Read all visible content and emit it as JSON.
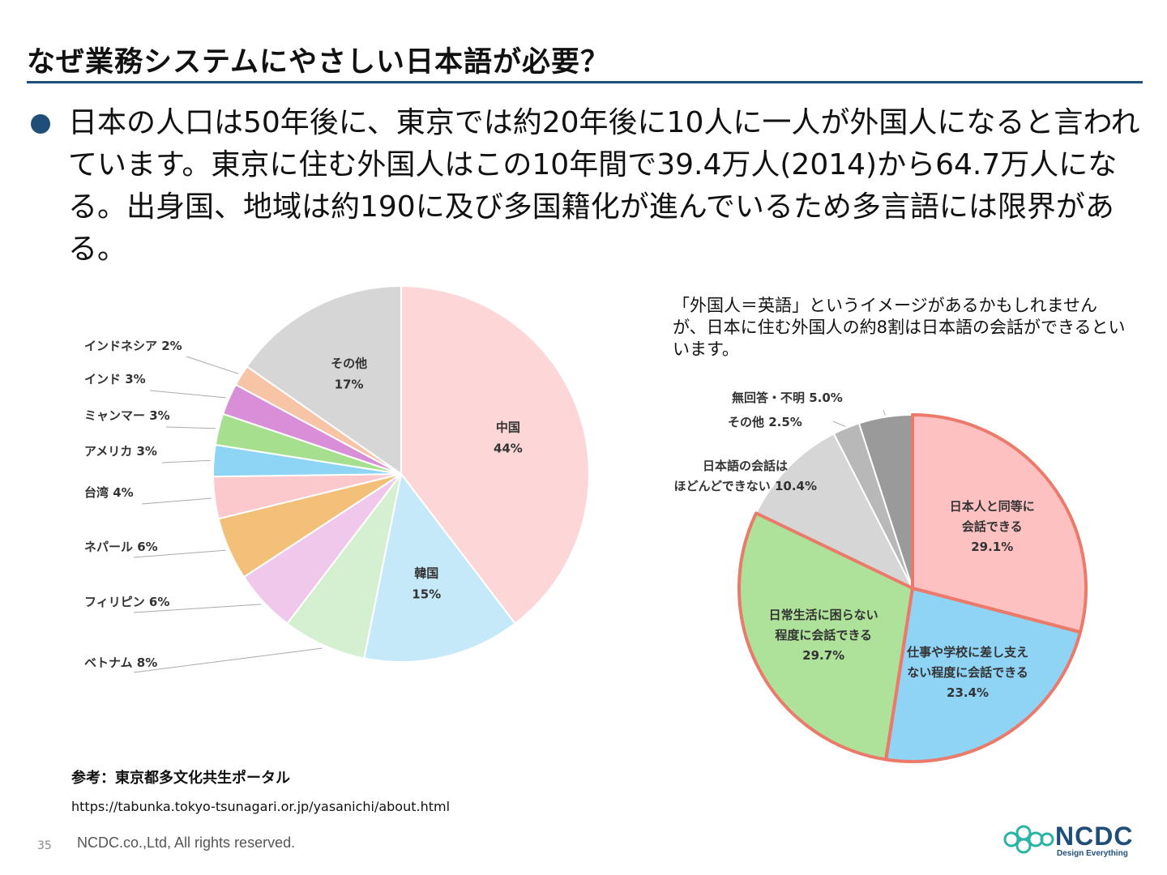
{
  "slide": {
    "title": "なぜ業務システムにやさしい日本語が必要？",
    "body": "日本の人口は50年後に、東京では約20年後に10人に一人が外国人になると言われています。東京に住む外国人はこの10年間で39.4万人(2014)から64.7万人になる。出身国、地域は約190に及び多国籍化が進んでいるため多言語には限界がある。",
    "note": "「外国人＝英語」というイメージがあるかもしれませんが、日本に住む外国人の約8割は日本語の会話ができるといいます。",
    "reference_title": "参考：東京都多文化共生ポータル",
    "reference_url": "https://tabunka.tokyo-tsunagari.or.jp/yasanichi/about.html",
    "page_number": "35",
    "copyright": "NCDC.co.,Ltd, All rights reserved.",
    "logo": {
      "name": "NCDC",
      "tagline": "Design Everything",
      "colors": [
        "#1f4e79",
        "#2bb3a3"
      ]
    },
    "accent_color": "#1f4e79"
  },
  "chart_data": [
    {
      "type": "pie",
      "title": "",
      "start_angle_deg": 0,
      "direction": "clockwise",
      "slices": [
        {
          "label": "中国",
          "value": 44,
          "display": "44%",
          "color": "#fdd7d7",
          "label_inside": true
        },
        {
          "label": "韓国",
          "value": 15,
          "display": "15%",
          "color": "#c5e9f9",
          "label_inside": true
        },
        {
          "label": "ベトナム",
          "value": 8,
          "display": "8%",
          "color": "#d5f0d0",
          "label_inside": false
        },
        {
          "label": "フィリピン",
          "value": 6,
          "display": "6%",
          "color": "#f0c8ec",
          "label_inside": false
        },
        {
          "label": "ネパール",
          "value": 6,
          "display": "6%",
          "color": "#f3c07a",
          "label_inside": false
        },
        {
          "label": "台湾",
          "value": 4,
          "display": "4%",
          "color": "#fbc8cc",
          "label_inside": false
        },
        {
          "label": "アメリカ",
          "value": 3,
          "display": "3%",
          "color": "#8ed4f5",
          "label_inside": false
        },
        {
          "label": "ミャンマー",
          "value": 3,
          "display": "3%",
          "color": "#a6e08f",
          "label_inside": false
        },
        {
          "label": "インド",
          "value": 3,
          "display": "3%",
          "color": "#d98fd8",
          "label_inside": false
        },
        {
          "label": "インドネシア",
          "value": 2,
          "display": "2%",
          "color": "#f7c4a6",
          "label_inside": false
        },
        {
          "label": "その他",
          "value": 17,
          "display": "17%",
          "color": "#d6d6d6",
          "label_inside": true
        }
      ]
    },
    {
      "type": "pie",
      "title": "",
      "start_angle_deg": 0,
      "direction": "clockwise",
      "highlight_color": "#ec7a6a",
      "slices": [
        {
          "label": "日本人と同等に会話できる",
          "lines": [
            "日本人と同等に",
            "会話できる"
          ],
          "value": 29.1,
          "display": "29.1%",
          "color": "#fdc1c1",
          "highlight": true,
          "label_inside": true
        },
        {
          "label": "仕事や学校に差し支えない程度に会話できる",
          "lines": [
            "仕事や学校に差し支え",
            "ない程度に会話できる"
          ],
          "value": 23.4,
          "display": "23.4%",
          "color": "#8fd3f5",
          "highlight": true,
          "label_inside": true
        },
        {
          "label": "日常生活に困らない程度に会話できる",
          "lines": [
            "日常生活に困らない",
            "程度に会話できる"
          ],
          "value": 29.7,
          "display": "29.7%",
          "color": "#aee29a",
          "highlight": true,
          "label_inside": true
        },
        {
          "label": "日本語の会話はほどんどできない",
          "lines": [
            "日本語の会話は",
            "ほどんどできない"
          ],
          "value": 10.4,
          "display": "10.4%",
          "color": "#d6d6d6",
          "highlight": false,
          "label_inside": false
        },
        {
          "label": "その他",
          "value": 2.5,
          "display": "2.5%",
          "color": "#b8b8b8",
          "highlight": false,
          "label_inside": false
        },
        {
          "label": "無回答・不明",
          "value": 5.0,
          "display": "5.0%",
          "color": "#9a9a9a",
          "highlight": false,
          "label_inside": false
        }
      ]
    }
  ]
}
